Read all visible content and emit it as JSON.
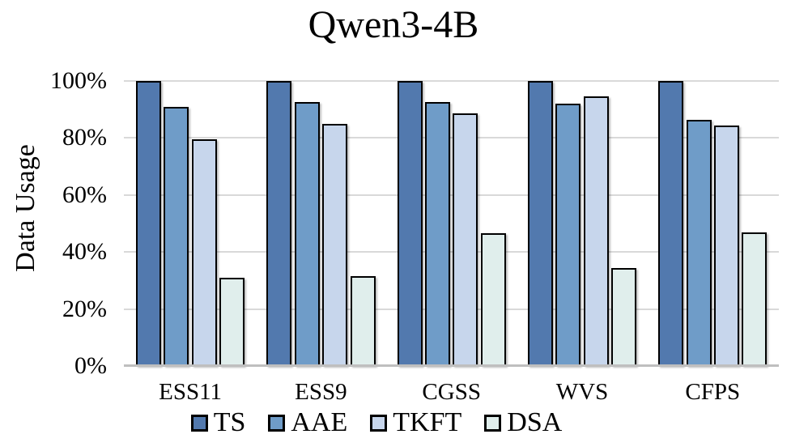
{
  "title": "Qwen3-4B",
  "y_axis": {
    "label": "Data Usage",
    "ticks": [
      {
        "label": "100%",
        "value": 100
      },
      {
        "label": "80%",
        "value": 80
      },
      {
        "label": "60%",
        "value": 60
      },
      {
        "label": "40%",
        "value": 40
      },
      {
        "label": "20%",
        "value": 20
      },
      {
        "label": "0%",
        "value": 0
      }
    ]
  },
  "colors": {
    "TS": "#5279AE",
    "AAE": "#6F9CC8",
    "TKFT": "#C7D6EC",
    "DSA": "#E0EEEC",
    "gridline": "#D9D9D9",
    "axisline": "#BFBFBF",
    "bar_border": "#000000"
  },
  "chart_data": {
    "type": "bar",
    "title": "Qwen3-4B",
    "xlabel": "",
    "ylabel": "Data Usage",
    "ylim": [
      0,
      100
    ],
    "ytick_format": "percent",
    "grid": true,
    "legend_position": "bottom",
    "categories": [
      "ESS11",
      "ESS9",
      "CGSS",
      "WVS",
      "CFPS"
    ],
    "series": [
      {
        "name": "TS",
        "color": "#5279AE",
        "values": [
          100,
          100,
          100,
          100,
          100
        ]
      },
      {
        "name": "AAE",
        "color": "#6F9CC8",
        "values": [
          91,
          92.5,
          92.5,
          92,
          86.5
        ]
      },
      {
        "name": "TKFT",
        "color": "#C7D6EC",
        "values": [
          79.5,
          85,
          88.5,
          94.5,
          84.5
        ]
      },
      {
        "name": "DSA",
        "color": "#E0EEEC",
        "values": [
          31,
          31.5,
          46.5,
          34.5,
          47
        ]
      }
    ]
  }
}
